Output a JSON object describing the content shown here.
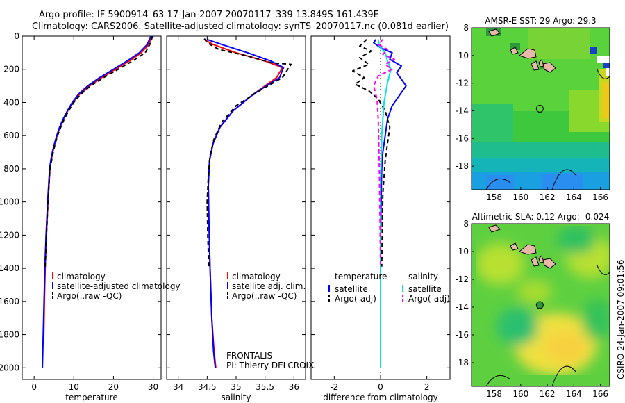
{
  "header": {
    "line1": "Argo profile: IF 5900914_63 17-Jan-2007 20070117_339 13.849S 161.439E",
    "line2": "Climatology: CARS2006. Satellite-adjusted climatology: synTS_20070117.nc (0.081d earlier)"
  },
  "credit": "CSIRO 24-Jan-2007 09:01:56",
  "chart_data": [
    {
      "id": "temperature",
      "type": "line",
      "xlabel": "temperature",
      "ylabel": "",
      "xlim": [
        -3,
        32
      ],
      "ylim": [
        2070,
        0
      ],
      "xticks": [
        0,
        10,
        20,
        30
      ],
      "yticks": [
        0,
        200,
        400,
        600,
        800,
        1000,
        1200,
        1400,
        1600,
        1800,
        2000
      ],
      "legend": {
        "placement": "lower-middle",
        "entries": [
          "climatology",
          "satellite-adjusted climatology",
          "Argo(..raw -QC)"
        ]
      },
      "series": [
        {
          "name": "climatology",
          "color": "#ff0000",
          "dash": "solid",
          "x": [
            29.6,
            28.9,
            27.0,
            24.0,
            20.5,
            17.0,
            14.0,
            11.5,
            9.8,
            8.5,
            7.4,
            6.5,
            5.8,
            5.2,
            4.7,
            4.3,
            4.0,
            3.5,
            3.1,
            2.8,
            2.6,
            2.4
          ],
          "y": [
            0,
            50,
            100,
            150,
            200,
            250,
            300,
            350,
            400,
            450,
            500,
            550,
            600,
            650,
            700,
            750,
            800,
            1000,
            1200,
            1400,
            1600,
            1850
          ]
        },
        {
          "name": "satellite-adjusted climatology",
          "color": "#0000ff",
          "dash": "solid",
          "x": [
            29.4,
            28.5,
            26.5,
            23.4,
            20.0,
            16.5,
            13.5,
            11.2,
            9.6,
            8.4,
            7.3,
            6.4,
            5.7,
            5.1,
            4.6,
            4.2,
            3.9,
            3.4,
            3.0,
            2.7,
            2.5,
            2.2,
            2.1
          ],
          "y": [
            0,
            50,
            100,
            150,
            200,
            250,
            300,
            350,
            400,
            450,
            500,
            550,
            600,
            650,
            700,
            750,
            800,
            1000,
            1200,
            1400,
            1600,
            1900,
            2000
          ]
        },
        {
          "name": "Argo(..raw -QC)",
          "color": "#000000",
          "dash": "dashed",
          "x": [
            29.8,
            29.4,
            28.0,
            24.8,
            21.2,
            17.5,
            14.2,
            11.8,
            10.0,
            8.7,
            7.6,
            6.7,
            5.9,
            5.3,
            4.8,
            4.4,
            4.0,
            3.5,
            3.1,
            2.8
          ],
          "y": [
            0,
            40,
            100,
            150,
            200,
            250,
            300,
            350,
            400,
            450,
            500,
            550,
            600,
            650,
            700,
            750,
            800,
            1000,
            1200,
            1390
          ]
        }
      ]
    },
    {
      "id": "salinity",
      "type": "line",
      "xlabel": "salinity",
      "ylabel": "",
      "xlim": [
        33.8,
        36.2
      ],
      "ylim": [
        2070,
        0
      ],
      "xticks": [
        34,
        34.5,
        35,
        35.5,
        36
      ],
      "yticks": [
        0,
        200,
        400,
        600,
        800,
        1000,
        1200,
        1400,
        1600,
        1800,
        2000
      ],
      "legend": {
        "placement": "lower-middle",
        "entries": [
          "climatology",
          "satellite adj. clim.",
          "Argo(..raw -QC)"
        ]
      },
      "annotations": [
        "FRONTALIS",
        "PI: Thierry DELCROIX"
      ],
      "series": [
        {
          "name": "climatology",
          "color": "#ff0000",
          "dash": "solid",
          "x": [
            34.45,
            34.6,
            35.0,
            35.5,
            35.8,
            35.7,
            35.3,
            34.95,
            34.72,
            34.6,
            34.54,
            34.52,
            34.53,
            34.55,
            34.58,
            34.62,
            34.65
          ],
          "y": [
            20,
            50,
            100,
            150,
            190,
            250,
            350,
            450,
            550,
            650,
            750,
            900,
            1100,
            1400,
            1700,
            1900,
            2000
          ]
        },
        {
          "name": "satellite adj. clim.",
          "color": "#0000ff",
          "dash": "solid",
          "x": [
            34.5,
            34.75,
            35.2,
            35.6,
            35.82,
            35.75,
            35.3,
            34.95,
            34.72,
            34.6,
            34.54,
            34.52,
            34.53,
            34.55,
            34.58,
            34.61,
            34.64
          ],
          "y": [
            20,
            50,
            100,
            150,
            190,
            250,
            350,
            450,
            550,
            650,
            750,
            900,
            1100,
            1400,
            1700,
            1900,
            2000
          ]
        },
        {
          "name": "Argo(..raw -QC)",
          "color": "#000000",
          "dash": "dashed",
          "x": [
            34.45,
            34.5,
            34.7,
            35.2,
            35.6,
            35.95,
            35.8,
            35.4,
            35.0,
            34.75,
            34.62,
            34.55,
            34.52,
            34.5,
            34.51,
            34.53
          ],
          "y": [
            15,
            40,
            80,
            120,
            160,
            170,
            250,
            330,
            420,
            520,
            620,
            720,
            850,
            1000,
            1200,
            1400
          ]
        }
      ]
    },
    {
      "id": "difference",
      "type": "line",
      "xlabel": "difference from climatology",
      "ylabel": "",
      "xlim": [
        -3,
        3
      ],
      "ylim": [
        2070,
        0
      ],
      "xticks": [
        -2,
        0,
        2
      ],
      "yticks": [
        0,
        200,
        400,
        600,
        800,
        1000,
        1200,
        1400,
        1600,
        1800,
        2000
      ],
      "legend": {
        "placement": "lower-middle",
        "entries": [
          "temperature",
          "satellite",
          "Argo(-adj)",
          "salinity",
          "satellite",
          "Argo(-adj)"
        ]
      },
      "series": [
        {
          "name": "satellite",
          "group": "temperature",
          "color": "#0000ff",
          "dash": "solid",
          "x": [
            -0.2,
            -0.3,
            0.0,
            0.5,
            0.4,
            0.9,
            0.7,
            1.1,
            0.8,
            0.5,
            0.3,
            0.2,
            0.1,
            0.05,
            0.0,
            0.0
          ],
          "y": [
            20,
            40,
            70,
            100,
            140,
            180,
            220,
            300,
            360,
            420,
            500,
            600,
            700,
            800,
            1200,
            2000
          ]
        },
        {
          "name": "Argo(-adj)",
          "group": "temperature",
          "color": "#000000",
          "dash": "dashed",
          "x": [
            -0.6,
            -0.9,
            -0.4,
            -0.9,
            -0.5,
            -1.2,
            -0.7,
            -1.1,
            -0.5,
            -0.1,
            0.2,
            0.4,
            0.3,
            0.2,
            0.1,
            0.05
          ],
          "y": [
            20,
            60,
            90,
            130,
            170,
            210,
            250,
            290,
            330,
            380,
            450,
            550,
            650,
            750,
            950,
            1390
          ]
        },
        {
          "name": "satellite",
          "group": "salinity",
          "color": "#00e5ee",
          "dash": "solid",
          "x": [
            -0.1,
            -0.05,
            0.2,
            0.3,
            0.45,
            0.3,
            0.15,
            0.05,
            0.0,
            0.0
          ],
          "y": [
            20,
            60,
            100,
            150,
            200,
            280,
            400,
            600,
            900,
            2000
          ]
        },
        {
          "name": "Argo(-adj)",
          "group": "salinity",
          "color": "#ff00ff",
          "dash": "dashed",
          "x": [
            0.1,
            -0.1,
            0.3,
            0.1,
            0.6,
            0.2,
            0.5,
            -0.1,
            -0.3,
            -0.15,
            -0.1,
            -0.05,
            0.0
          ],
          "y": [
            20,
            50,
            80,
            110,
            140,
            170,
            200,
            240,
            300,
            380,
            500,
            800,
            1390
          ]
        }
      ]
    },
    {
      "id": "sst-map",
      "type": "heatmap",
      "title": "AMSR-E SST: 29 Argo: 29.3",
      "xlim": [
        156.3,
        166.7
      ],
      "ylim": [
        -19.7,
        -8
      ],
      "xticks": [
        158,
        160,
        162,
        164,
        166
      ],
      "yticks": [
        -8,
        -10,
        -12,
        -14,
        -16,
        -18
      ],
      "argo_position": {
        "lon": 161.439,
        "lat": -13.849
      }
    },
    {
      "id": "sla-map",
      "type": "heatmap",
      "title": "Altimetric SLA: 0.12 Argo: -0.024",
      "xlim": [
        156.3,
        166.7
      ],
      "ylim": [
        -19.7,
        -8
      ],
      "xticks": [
        158,
        160,
        162,
        164,
        166
      ],
      "yticks": [
        -8,
        -10,
        -12,
        -14,
        -16,
        -18
      ],
      "argo_position": {
        "lon": 161.439,
        "lat": -13.849
      }
    }
  ]
}
